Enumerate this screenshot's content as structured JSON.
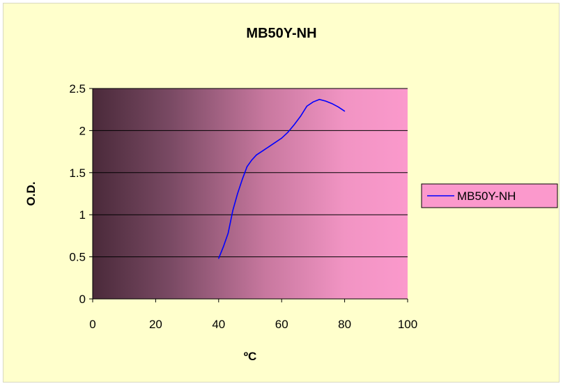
{
  "chart_data": {
    "type": "line",
    "title": "MB50Y-NH",
    "xlabel": "ºC",
    "ylabel": "O.D.",
    "xlim": [
      0,
      100
    ],
    "ylim": [
      0,
      2.5
    ],
    "xticks": [
      "0",
      "20",
      "40",
      "60",
      "80",
      "100"
    ],
    "yticks": [
      "0",
      "0.5",
      "1",
      "1.5",
      "2",
      "2.5"
    ],
    "grid": "horizontal major gridlines",
    "legend_position": "right",
    "plot_background": "gradient from #4a2a3a (left) to #fb99cc (right)",
    "chart_background": "#ffffcc",
    "series": [
      {
        "name": "MB50Y-NH",
        "color": "#0000ff",
        "x": [
          40,
          41.5,
          43,
          44.5,
          46,
          47.5,
          49,
          50.5,
          52,
          54,
          56,
          58,
          60,
          62,
          64,
          66,
          68,
          70,
          72,
          74,
          76,
          78,
          80
        ],
        "y": [
          0.48,
          0.62,
          0.78,
          1.05,
          1.25,
          1.42,
          1.57,
          1.65,
          1.71,
          1.76,
          1.81,
          1.86,
          1.91,
          1.98,
          2.07,
          2.17,
          2.29,
          2.34,
          2.37,
          2.35,
          2.32,
          2.28,
          2.23
        ]
      }
    ]
  }
}
